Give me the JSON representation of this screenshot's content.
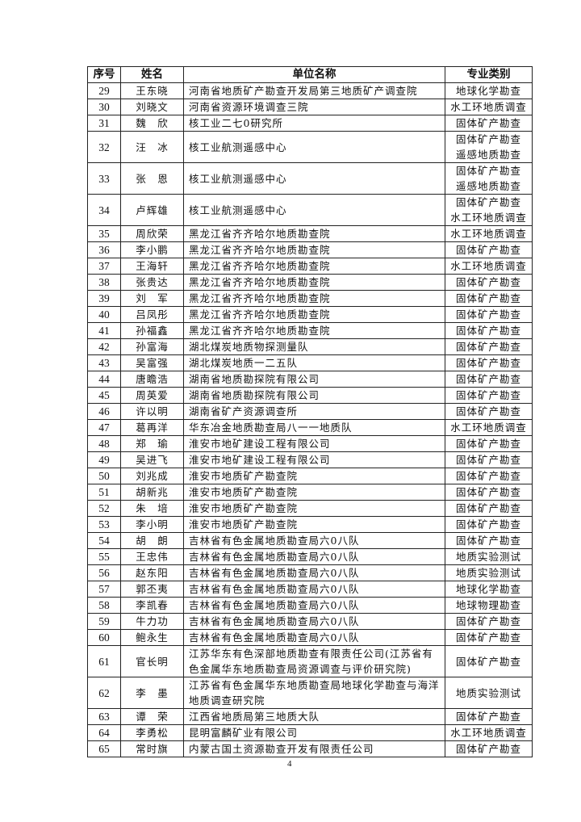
{
  "headers": {
    "seq": "序号",
    "name": "姓名",
    "unit": "单位名称",
    "type": "专业类别"
  },
  "rows": [
    {
      "seq": "29",
      "name": "王东晓",
      "unit": "河南省地质矿产勘查开发局第三地质矿产调查院",
      "type": "地球化学勘查"
    },
    {
      "seq": "30",
      "name": "刘晓文",
      "unit": "河南省资源环境调查三院",
      "type": "水工环地质调查"
    },
    {
      "seq": "31",
      "name": "魏　欣",
      "unit": "核工业二七0研究所",
      "type": "固体矿产勘查"
    },
    {
      "seq": "32",
      "name": "汪　冰",
      "unit": "核工业航测遥感中心",
      "type": "固体矿产勘查\n遥感地质勘查"
    },
    {
      "seq": "33",
      "name": "张　恩",
      "unit": "核工业航测遥感中心",
      "type": "固体矿产勘查\n遥感地质勘查"
    },
    {
      "seq": "34",
      "name": "卢辉雄",
      "unit": "核工业航测遥感中心",
      "type": "固体矿产勘查\n水工环地质调查"
    },
    {
      "seq": "35",
      "name": "周欣荣",
      "unit": "黑龙江省齐齐哈尔地质勘查院",
      "type": "水工环地质调查"
    },
    {
      "seq": "36",
      "name": "李小鹏",
      "unit": "黑龙江省齐齐哈尔地质勘查院",
      "type": "固体矿产勘查"
    },
    {
      "seq": "37",
      "name": "王海轩",
      "unit": "黑龙江省齐齐哈尔地质勘查院",
      "type": "水工环地质调查"
    },
    {
      "seq": "38",
      "name": "张贵达",
      "unit": "黑龙江省齐齐哈尔地质勘查院",
      "type": "固体矿产勘查"
    },
    {
      "seq": "39",
      "name": "刘　军",
      "unit": "黑龙江省齐齐哈尔地质勘查院",
      "type": "固体矿产勘查"
    },
    {
      "seq": "40",
      "name": "吕凤彤",
      "unit": "黑龙江省齐齐哈尔地质勘查院",
      "type": "固体矿产勘查"
    },
    {
      "seq": "41",
      "name": "孙福鑫",
      "unit": "黑龙江省齐齐哈尔地质勘查院",
      "type": "固体矿产勘查"
    },
    {
      "seq": "42",
      "name": "孙富海",
      "unit": "湖北煤炭地质物探测量队",
      "type": "固体矿产勘查"
    },
    {
      "seq": "43",
      "name": "吴富强",
      "unit": "湖北煤炭地质一二五队",
      "type": "固体矿产勘查"
    },
    {
      "seq": "44",
      "name": "唐瞻浩",
      "unit": "湖南省地质勘探院有限公司",
      "type": "固体矿产勘查"
    },
    {
      "seq": "45",
      "name": "周英爱",
      "unit": "湖南省地质勘探院有限公司",
      "type": "固体矿产勘查"
    },
    {
      "seq": "46",
      "name": "许以明",
      "unit": "湖南省矿产资源调查所",
      "type": "固体矿产勘查"
    },
    {
      "seq": "47",
      "name": "葛再洋",
      "unit": "华东冶金地质勘查局八一一地质队",
      "type": "水工环地质调查"
    },
    {
      "seq": "48",
      "name": "郑　瑜",
      "unit": "淮安市地矿建设工程有限公司",
      "type": "固体矿产勘查"
    },
    {
      "seq": "49",
      "name": "吴进飞",
      "unit": "淮安市地矿建设工程有限公司",
      "type": "固体矿产勘查"
    },
    {
      "seq": "50",
      "name": "刘兆成",
      "unit": "淮安市地质矿产勘查院",
      "type": "固体矿产勘查"
    },
    {
      "seq": "51",
      "name": "胡新兆",
      "unit": "淮安市地质矿产勘查院",
      "type": "固体矿产勘查"
    },
    {
      "seq": "52",
      "name": "朱　培",
      "unit": "淮安市地质矿产勘查院",
      "type": "固体矿产勘查"
    },
    {
      "seq": "53",
      "name": "李小明",
      "unit": "淮安市地质矿产勘查院",
      "type": "固体矿产勘查"
    },
    {
      "seq": "54",
      "name": "胡　朗",
      "unit": "吉林省有色金属地质勘查局六0八队",
      "type": "固体矿产勘查"
    },
    {
      "seq": "55",
      "name": "王忠伟",
      "unit": "吉林省有色金属地质勘查局六0八队",
      "type": "地质实验测试"
    },
    {
      "seq": "56",
      "name": "赵东阳",
      "unit": "吉林省有色金属地质勘查局六0八队",
      "type": "地质实验测试"
    },
    {
      "seq": "57",
      "name": "郭丕夷",
      "unit": "吉林省有色金属地质勘查局六0八队",
      "type": "地球化学勘查"
    },
    {
      "seq": "58",
      "name": "李凯春",
      "unit": "吉林省有色金属地质勘查局六0八队",
      "type": "地球物理勘查"
    },
    {
      "seq": "59",
      "name": "牛力功",
      "unit": "吉林省有色金属地质勘查局六0八队",
      "type": "固体矿产勘查"
    },
    {
      "seq": "60",
      "name": "鲍永生",
      "unit": "吉林省有色金属地质勘查局六0八队",
      "type": "固体矿产勘查"
    },
    {
      "seq": "61",
      "name": "官长明",
      "unit": "江苏华东有色深部地质勘查有限责任公司(江苏省有色金属华东地质勘查局资源调查与评价研究院)",
      "type": "固体矿产勘查"
    },
    {
      "seq": "62",
      "name": "李　墨",
      "unit": "江苏省有色金属华东地质勘查局地球化学勘查与海洋地质调查研究院",
      "type": "地质实验测试"
    },
    {
      "seq": "63",
      "name": "谭　荣",
      "unit": "江西省地质局第三地质大队",
      "type": "固体矿产勘查"
    },
    {
      "seq": "64",
      "name": "李勇松",
      "unit": "昆明富麟矿业有限公司",
      "type": "水工环地质调查"
    },
    {
      "seq": "65",
      "name": "常时旗",
      "unit": "内蒙古国土资源勘查开发有限责任公司",
      "type": "固体矿产勘查"
    }
  ],
  "page_number": "4"
}
